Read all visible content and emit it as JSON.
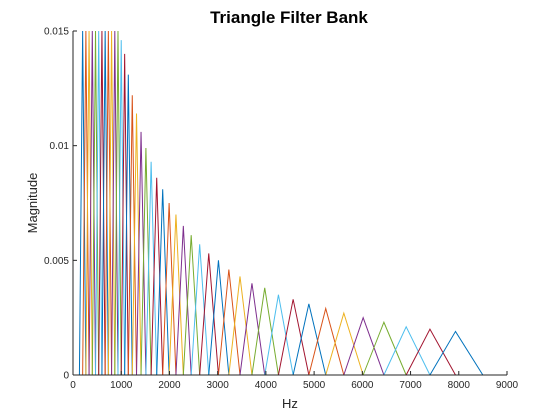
{
  "chart_data": {
    "type": "line",
    "title": "Triangle Filter Bank",
    "xlabel": "Hz",
    "ylabel": "Magnitude",
    "xlim": [
      0,
      9000
    ],
    "ylim": [
      0,
      0.015
    ],
    "x_ticks": [
      0,
      1000,
      2000,
      3000,
      4000,
      5000,
      6000,
      7000,
      8000,
      9000
    ],
    "x_tick_labels": [
      "0",
      "1000",
      "2000",
      "3000",
      "4000",
      "5000",
      "6000",
      "7000",
      "8000",
      "9000"
    ],
    "y_ticks": [
      0,
      0.005,
      0.01,
      0.015
    ],
    "y_tick_labels": [
      "0",
      "0.005",
      "0.01",
      "0.015"
    ],
    "grid": false,
    "legend": "none",
    "series_colors": [
      "#0072BD",
      "#D95319",
      "#EDB120",
      "#7E2F8E",
      "#77AC30",
      "#4DBEEE",
      "#A2142F"
    ],
    "filter_edges_hz": [
      133,
      200,
      267,
      333,
      400,
      467,
      533,
      600,
      667,
      733,
      800,
      867,
      933,
      1000,
      1071,
      1147,
      1229,
      1317,
      1411,
      1512,
      1620,
      1736,
      1860,
      1993,
      2135,
      2288,
      2451,
      2627,
      2815,
      3016,
      3232,
      3463,
      3711,
      3976,
      4260,
      4565,
      4891,
      5241,
      5616,
      6017,
      6447,
      6909,
      7402,
      7932,
      8499
    ],
    "filter_peaks": [
      0.015,
      0.015,
      0.015,
      0.015,
      0.015,
      0.015,
      0.015,
      0.015,
      0.015,
      0.015,
      0.015,
      0.015,
      0.0146,
      0.014,
      0.0131,
      0.0122,
      0.0114,
      0.0106,
      0.0099,
      0.0093,
      0.0086,
      0.0081,
      0.0075,
      0.007,
      0.0065,
      0.0061,
      0.0057,
      0.0053,
      0.005,
      0.0046,
      0.0043,
      0.004,
      0.0038,
      0.0035,
      0.0033,
      0.0031,
      0.0029,
      0.0027,
      0.0025,
      0.0023,
      0.0021,
      0.002,
      0.0019
    ]
  }
}
